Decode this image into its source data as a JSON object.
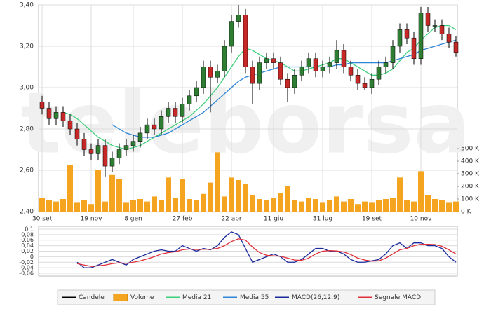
{
  "chart_data": [
    {
      "type": "candlestick",
      "watermark": "teleborsa",
      "categories": [
        "30 set",
        null,
        null,
        null,
        null,
        null,
        null,
        "19 nov",
        null,
        null,
        null,
        null,
        null,
        "8 gen",
        null,
        null,
        null,
        null,
        null,
        null,
        "27 feb",
        null,
        null,
        null,
        null,
        null,
        null,
        "22 apr",
        null,
        null,
        null,
        null,
        null,
        "11 giu",
        null,
        null,
        null,
        null,
        null,
        null,
        "31 lug",
        null,
        null,
        null,
        null,
        null,
        null,
        "19 set",
        null,
        null,
        null,
        null,
        null,
        null,
        "10 nov",
        null,
        null,
        null,
        null,
        null
      ],
      "candles": {
        "name": "Candele",
        "color": "#000000",
        "up_color": "#2e7d32",
        "down_color": "#c62828",
        "open": [
          2.93,
          2.9,
          2.85,
          2.88,
          2.84,
          2.8,
          2.75,
          2.7,
          2.68,
          2.72,
          2.62,
          2.66,
          2.7,
          2.72,
          2.74,
          2.78,
          2.82,
          2.8,
          2.86,
          2.9,
          2.86,
          2.92,
          2.96,
          3.0,
          3.1,
          3.05,
          3.08,
          3.2,
          3.32,
          3.35,
          3.1,
          3.02,
          3.12,
          3.14,
          3.12,
          3.04,
          3.0,
          3.06,
          3.1,
          3.14,
          3.08,
          3.1,
          3.12,
          3.18,
          3.1,
          3.06,
          3.02,
          3.0,
          3.04,
          3.1,
          3.12,
          3.2,
          3.28,
          3.24,
          3.14,
          3.36,
          3.3,
          3.3,
          3.26,
          3.22
        ],
        "high": [
          2.96,
          2.93,
          2.91,
          2.91,
          2.87,
          2.83,
          2.78,
          2.73,
          2.75,
          2.75,
          2.69,
          2.73,
          2.75,
          2.77,
          2.81,
          2.85,
          2.85,
          2.89,
          2.93,
          2.93,
          2.95,
          2.99,
          3.03,
          3.13,
          3.13,
          3.11,
          3.23,
          3.35,
          3.4,
          3.38,
          3.13,
          3.15,
          3.17,
          3.17,
          3.15,
          3.07,
          3.09,
          3.13,
          3.17,
          3.17,
          3.13,
          3.15,
          3.23,
          3.21,
          3.13,
          3.09,
          3.05,
          3.07,
          3.13,
          3.15,
          3.23,
          3.31,
          3.31,
          3.27,
          3.39,
          3.39,
          3.33,
          3.33,
          3.29,
          3.25
        ],
        "low": [
          2.87,
          2.82,
          2.82,
          2.81,
          2.77,
          2.72,
          2.67,
          2.65,
          2.65,
          2.57,
          2.59,
          2.63,
          2.67,
          2.69,
          2.71,
          2.75,
          2.77,
          2.77,
          2.83,
          2.83,
          2.83,
          2.89,
          2.93,
          2.97,
          2.88,
          3.02,
          3.05,
          3.17,
          3.29,
          3.07,
          2.92,
          2.99,
          3.09,
          3.09,
          3.01,
          2.93,
          2.97,
          3.03,
          3.07,
          3.05,
          3.05,
          3.07,
          3.09,
          3.07,
          3.03,
          2.99,
          2.99,
          2.97,
          3.01,
          3.07,
          3.09,
          3.17,
          3.21,
          3.11,
          3.11,
          3.27,
          3.27,
          3.23,
          3.19,
          3.15
        ],
        "close": [
          2.9,
          2.85,
          2.88,
          2.84,
          2.8,
          2.75,
          2.7,
          2.68,
          2.72,
          2.62,
          2.66,
          2.7,
          2.72,
          2.74,
          2.78,
          2.82,
          2.8,
          2.86,
          2.9,
          2.86,
          2.92,
          2.96,
          3.0,
          3.1,
          3.05,
          3.08,
          3.2,
          3.32,
          3.35,
          3.1,
          3.02,
          3.12,
          3.14,
          3.12,
          3.04,
          3.0,
          3.06,
          3.1,
          3.14,
          3.08,
          3.1,
          3.12,
          3.18,
          3.1,
          3.06,
          3.02,
          3.0,
          3.04,
          3.1,
          3.12,
          3.2,
          3.28,
          3.24,
          3.14,
          3.36,
          3.3,
          3.3,
          3.26,
          3.22,
          3.17
        ]
      },
      "volume": {
        "name": "Volume",
        "color": "#f5a41f",
        "axis": "y2",
        "values": [
          110,
          90,
          80,
          100,
          370,
          70,
          90,
          60,
          330,
          80,
          290,
          260,
          70,
          90,
          100,
          80,
          120,
          90,
          270,
          110,
          260,
          100,
          90,
          140,
          230,
          470,
          120,
          270,
          250,
          220,
          130,
          100,
          90,
          110,
          150,
          200,
          90,
          80,
          110,
          100,
          70,
          90,
          120,
          80,
          100,
          60,
          80,
          70,
          90,
          100,
          110,
          270,
          90,
          80,
          320,
          130,
          100,
          90,
          70,
          80
        ]
      },
      "series": [
        {
          "name": "Media 21",
          "color": "#3ecf7a",
          "values": [
            null,
            null,
            null,
            2.88,
            2.87,
            2.85,
            2.82,
            2.79,
            2.76,
            2.74,
            2.72,
            2.71,
            2.7,
            2.71,
            2.72,
            2.74,
            2.76,
            2.78,
            2.8,
            2.82,
            2.84,
            2.86,
            2.89,
            2.92,
            2.96,
            3.0,
            3.05,
            3.1,
            3.15,
            3.19,
            3.18,
            3.16,
            3.14,
            3.13,
            3.12,
            3.1,
            3.08,
            3.08,
            3.09,
            3.1,
            3.11,
            3.12,
            3.14,
            3.14,
            3.12,
            3.1,
            3.08,
            3.06,
            3.06,
            3.07,
            3.09,
            3.13,
            3.17,
            3.19,
            3.23,
            3.26,
            3.29,
            3.3,
            3.3,
            3.28
          ]
        },
        {
          "name": "Media 55",
          "color": "#2f86d6",
          "values": [
            null,
            null,
            null,
            null,
            null,
            null,
            null,
            null,
            null,
            null,
            2.82,
            2.8,
            2.78,
            2.77,
            2.76,
            2.76,
            2.76,
            2.77,
            2.78,
            2.8,
            2.82,
            2.84,
            2.86,
            2.88,
            2.91,
            2.94,
            2.97,
            3.0,
            3.03,
            3.05,
            3.06,
            3.07,
            3.08,
            3.09,
            3.1,
            3.1,
            3.1,
            3.1,
            3.1,
            3.1,
            3.1,
            3.1,
            3.11,
            3.11,
            3.12,
            3.12,
            3.12,
            3.12,
            3.12,
            3.12,
            3.13,
            3.14,
            3.15,
            3.16,
            3.18,
            3.19,
            3.2,
            3.21,
            3.22,
            3.23
          ]
        }
      ],
      "ylim": [
        2.4,
        3.4
      ],
      "yticks": [
        {
          "value": 2.4,
          "label": "2,40"
        },
        {
          "value": 2.6,
          "label": "2,60"
        },
        {
          "value": 2.8,
          "label": "2,80"
        },
        {
          "value": 3.0,
          "label": "3,00"
        },
        {
          "value": 3.2,
          "label": "3,20"
        },
        {
          "value": 3.4,
          "label": "3,40"
        }
      ],
      "y2lim": [
        0,
        1639
      ],
      "y2ticks": [
        {
          "value": 0,
          "label": "0 K"
        },
        {
          "value": 100,
          "label": "100 K"
        },
        {
          "value": 200,
          "label": "200 K"
        },
        {
          "value": 300,
          "label": "300 K"
        },
        {
          "value": 400,
          "label": "400 K"
        },
        {
          "value": 500,
          "label": "500 K"
        }
      ],
      "grid": true
    },
    {
      "type": "line",
      "series": [
        {
          "name": "MACD(26,12,9)",
          "color": "#1a2a9c",
          "values": [
            null,
            null,
            null,
            null,
            null,
            -0.02,
            -0.04,
            -0.04,
            -0.03,
            -0.02,
            -0.01,
            -0.02,
            -0.03,
            -0.01,
            0.0,
            0.01,
            0.02,
            0.025,
            0.02,
            0.02,
            0.04,
            0.03,
            0.02,
            0.03,
            0.025,
            0.04,
            0.07,
            0.09,
            0.08,
            0.03,
            -0.02,
            -0.01,
            0.0,
            0.01,
            0.0,
            -0.02,
            -0.02,
            -0.01,
            0.01,
            0.03,
            0.03,
            0.02,
            0.02,
            0.01,
            -0.01,
            -0.02,
            -0.02,
            -0.015,
            -0.01,
            0.01,
            0.04,
            0.05,
            0.03,
            0.05,
            0.05,
            0.04,
            0.04,
            0.03,
            0.0,
            -0.02
          ]
        },
        {
          "name": "Segnale MACD",
          "color": "#e0303a",
          "values": [
            null,
            null,
            null,
            null,
            null,
            -0.025,
            -0.03,
            -0.035,
            -0.033,
            -0.03,
            -0.025,
            -0.022,
            -0.024,
            -0.02,
            -0.015,
            -0.008,
            0.0,
            0.01,
            0.015,
            0.018,
            0.025,
            0.028,
            0.026,
            0.027,
            0.027,
            0.03,
            0.04,
            0.055,
            0.065,
            0.06,
            0.035,
            0.015,
            0.005,
            0.003,
            0.002,
            -0.005,
            -0.012,
            -0.013,
            -0.005,
            0.01,
            0.02,
            0.022,
            0.021,
            0.017,
            0.008,
            -0.005,
            -0.012,
            -0.016,
            -0.015,
            -0.005,
            0.01,
            0.025,
            0.03,
            0.04,
            0.045,
            0.045,
            0.044,
            0.038,
            0.025,
            0.01
          ]
        }
      ],
      "ylim": [
        -0.07,
        0.11
      ],
      "yticks": [
        {
          "value": 0.1,
          "label": "0,1"
        },
        {
          "value": 0.08,
          "label": "0,08"
        },
        {
          "value": 0.06,
          "label": "0,06"
        },
        {
          "value": 0.04,
          "label": "0,04"
        },
        {
          "value": 0.02,
          "label": "0,02"
        },
        {
          "value": 0,
          "label": "0"
        },
        {
          "value": -0.02,
          "label": "-0,02"
        },
        {
          "value": -0.04,
          "label": "-0,04"
        },
        {
          "value": -0.06,
          "label": "-0,06"
        }
      ],
      "grid": true
    }
  ]
}
